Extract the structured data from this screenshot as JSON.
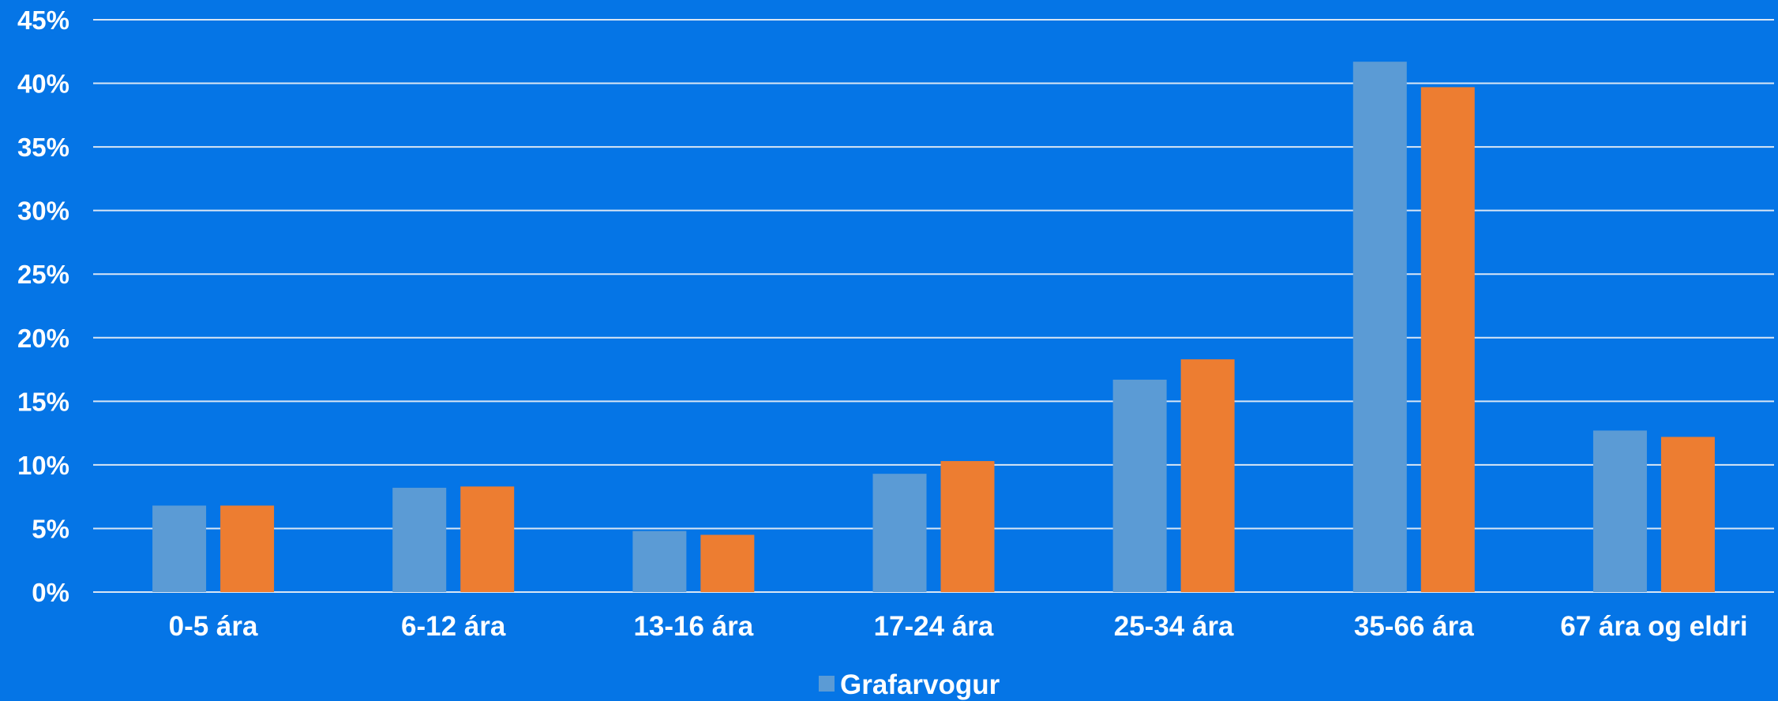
{
  "chart_data": {
    "type": "bar",
    "categories": [
      "0-5 ára",
      "6-12 ára",
      "13-16 ára",
      "17-24 ára",
      "25-34 ára",
      "35-66 ára",
      "67 ára og eldri"
    ],
    "series": [
      {
        "name": "Grafarvogur",
        "color": "#5b9bd5",
        "values": [
          6.8,
          8.2,
          4.8,
          9.3,
          16.7,
          41.7,
          12.7
        ]
      },
      {
        "color": "#ed7d31",
        "values": [
          6.8,
          8.3,
          4.5,
          10.3,
          18.3,
          39.7,
          12.2
        ]
      }
    ],
    "ylim": [
      0,
      45
    ],
    "yticks": [
      0,
      5,
      10,
      15,
      20,
      25,
      30,
      35,
      40,
      45
    ],
    "ytick_labels": [
      "0%",
      "5%",
      "10%",
      "15%",
      "20%",
      "25%",
      "30%",
      "35%",
      "40%",
      "45%"
    ],
    "grid": true,
    "legend_position": "bottom",
    "background": "#0575e6"
  }
}
